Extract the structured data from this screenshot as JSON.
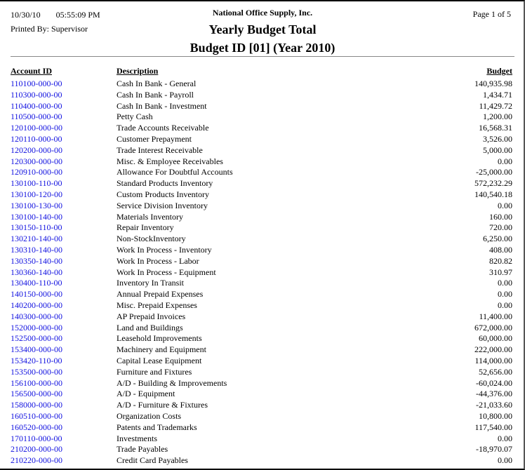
{
  "header": {
    "date": "10/30/10",
    "time": "05:55:09 PM",
    "printed_by": "Printed By: Supervisor",
    "company": "National Office Supply, Inc.",
    "title": "Yearly Budget Total",
    "subtitle": "Budget ID [01] (Year 2010)",
    "page": "Page 1 of  5"
  },
  "columns": {
    "account": "Account ID",
    "description": "Description",
    "budget": "Budget"
  },
  "rows": [
    {
      "account": "110100-000-00",
      "description": "Cash In Bank - General",
      "budget": "140,935.98"
    },
    {
      "account": "110300-000-00",
      "description": "Cash In Bank - Payroll",
      "budget": "1,434.71"
    },
    {
      "account": "110400-000-00",
      "description": "Cash In Bank - Investment",
      "budget": "11,429.72"
    },
    {
      "account": "110500-000-00",
      "description": "Petty Cash",
      "budget": "1,200.00"
    },
    {
      "account": "120100-000-00",
      "description": "Trade Accounts Receivable",
      "budget": "16,568.31"
    },
    {
      "account": "120110-000-00",
      "description": "Customer Prepayment",
      "budget": "3,526.00"
    },
    {
      "account": "120200-000-00",
      "description": "Trade Interest Receivable",
      "budget": "5,000.00"
    },
    {
      "account": "120300-000-00",
      "description": "Misc. & Employee Receivables",
      "budget": "0.00"
    },
    {
      "account": "120910-000-00",
      "description": "Allowance For Doubtful Accounts",
      "budget": "-25,000.00"
    },
    {
      "account": "130100-110-00",
      "description": "Standard Products Inventory",
      "budget": "572,232.29"
    },
    {
      "account": "130100-120-00",
      "description": "Custom Products Inventory",
      "budget": "140,540.18"
    },
    {
      "account": "130100-130-00",
      "description": "Service Division Inventory",
      "budget": "0.00"
    },
    {
      "account": "130100-140-00",
      "description": "Materials Inventory",
      "budget": "160.00"
    },
    {
      "account": "130150-110-00",
      "description": "Repair Inventory",
      "budget": "720.00"
    },
    {
      "account": "130210-140-00",
      "description": "Non-StockInventory",
      "budget": "6,250.00"
    },
    {
      "account": "130310-140-00",
      "description": "Work In Process - Inventory",
      "budget": "408.00"
    },
    {
      "account": "130350-140-00",
      "description": "Work In Process - Labor",
      "budget": "820.82"
    },
    {
      "account": "130360-140-00",
      "description": "Work In Process - Equipment",
      "budget": "310.97"
    },
    {
      "account": "130400-110-00",
      "description": "Inventory In Transit",
      "budget": "0.00"
    },
    {
      "account": "140150-000-00",
      "description": "Annual Prepaid Expenses",
      "budget": "0.00"
    },
    {
      "account": "140200-000-00",
      "description": "Misc. Prepaid Expenses",
      "budget": "0.00"
    },
    {
      "account": "140300-000-00",
      "description": "AP Prepaid Invoices",
      "budget": "11,400.00"
    },
    {
      "account": "152000-000-00",
      "description": "Land and Buildings",
      "budget": "672,000.00"
    },
    {
      "account": "152500-000-00",
      "description": "Leasehold Improvements",
      "budget": "60,000.00"
    },
    {
      "account": "153400-000-00",
      "description": "Machinery and Equipment",
      "budget": "222,000.00"
    },
    {
      "account": "153420-110-00",
      "description": "Capital Lease Equipment",
      "budget": "114,000.00"
    },
    {
      "account": "153500-000-00",
      "description": "Furniture and Fixtures",
      "budget": "52,656.00"
    },
    {
      "account": "156100-000-00",
      "description": "A/D - Building & Improvements",
      "budget": "-60,024.00"
    },
    {
      "account": "156500-000-00",
      "description": "A/D - Equipment",
      "budget": "-44,376.00"
    },
    {
      "account": "158000-000-00",
      "description": "A/D - Furniture & Fixtures",
      "budget": "-21,033.60"
    },
    {
      "account": "160510-000-00",
      "description": "Organization Costs",
      "budget": "10,800.00"
    },
    {
      "account": "160520-000-00",
      "description": "Patents and Trademarks",
      "budget": "117,540.00"
    },
    {
      "account": "170110-000-00",
      "description": "Investments",
      "budget": "0.00"
    },
    {
      "account": "210200-000-00",
      "description": "Trade Payables",
      "budget": "-18,970.07"
    },
    {
      "account": "210220-000-00",
      "description": "Credit Card Payables",
      "budget": "0.00"
    }
  ],
  "colors": {
    "link": "#1010e0"
  }
}
